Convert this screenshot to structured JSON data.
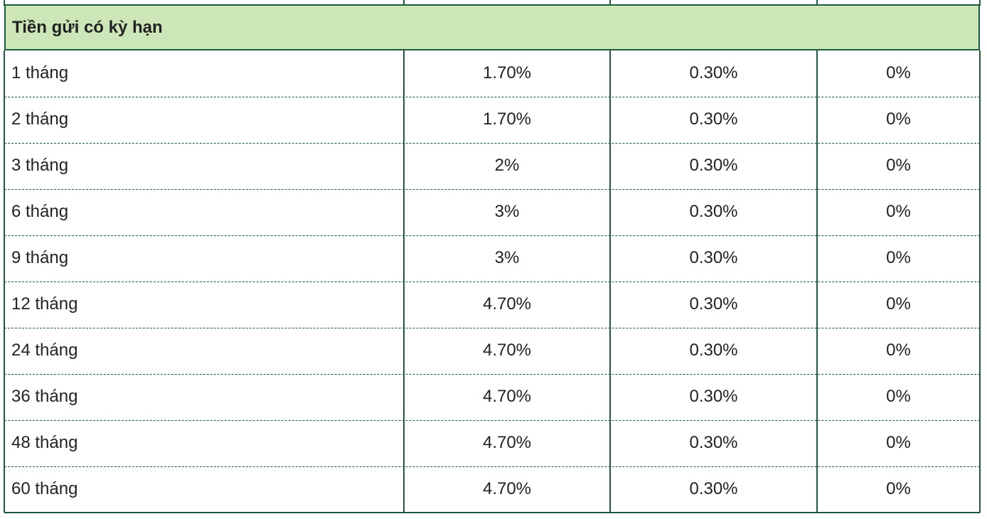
{
  "table": {
    "section": "Tiền gửi có kỳ hạn",
    "rows": [
      [
        "1 tháng",
        "1.70%",
        "0.30%",
        "0%"
      ],
      [
        "2 tháng",
        "1.70%",
        "0.30%",
        "0%"
      ],
      [
        "3 tháng",
        "2%",
        "0.30%",
        "0%"
      ],
      [
        "6 tháng",
        "3%",
        "0.30%",
        "0%"
      ],
      [
        "9 tháng",
        "3%",
        "0.30%",
        "0%"
      ],
      [
        "12 tháng",
        "4.70%",
        "0.30%",
        "0%"
      ],
      [
        "24 tháng",
        "4.70%",
        "0.30%",
        "0%"
      ],
      [
        "36 tháng",
        "4.70%",
        "0.30%",
        "0%"
      ],
      [
        "48 tháng",
        "4.70%",
        "0.30%",
        "0%"
      ],
      [
        "60 tháng",
        "4.70%",
        "0.30%",
        "0%"
      ]
    ]
  }
}
